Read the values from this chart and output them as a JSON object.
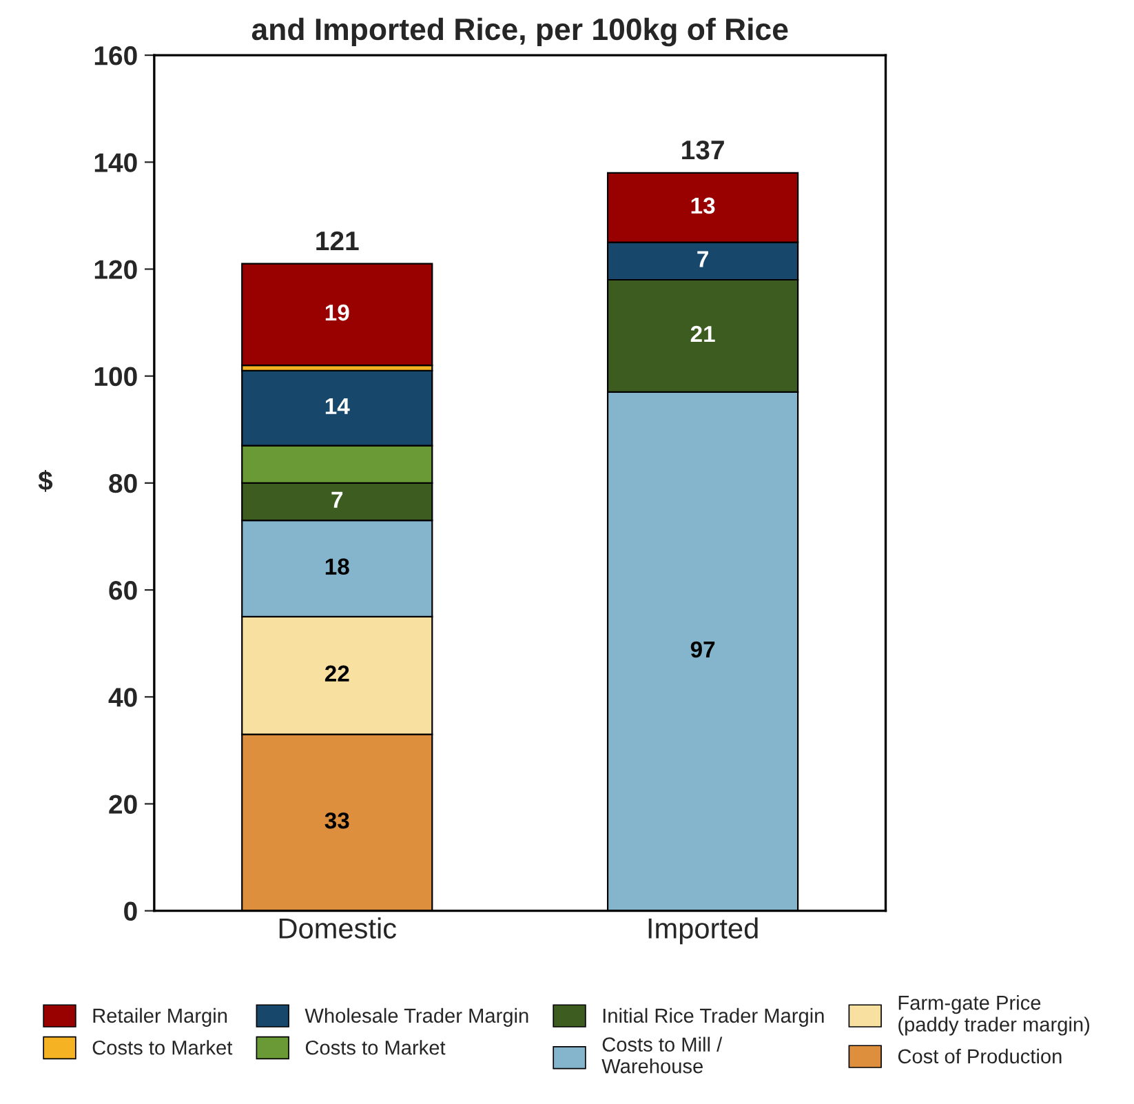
{
  "chart_data": {
    "type": "bar",
    "stacked": true,
    "title": "and Imported Rice, per 100kg of Rice",
    "ylabel": "$",
    "categories": [
      "Domestic",
      "Imported"
    ],
    "series": [
      {
        "name": "Cost of Production",
        "color": "#dd8f3d",
        "values": [
          33,
          null
        ],
        "value_labels": [
          "33",
          null
        ]
      },
      {
        "name": "Farm-gate Price\n(paddy trader margin)",
        "color": "#f8e0a0",
        "values": [
          22,
          null
        ],
        "value_labels": [
          "22",
          null
        ]
      },
      {
        "name": "Costs to Mill /\nWarehouse",
        "color": "#84b5cc",
        "values": [
          18,
          97
        ],
        "value_labels": [
          "18",
          "97"
        ]
      },
      {
        "name": "Initial Rice Trader Margin",
        "color": "#3d5c20",
        "values": [
          7,
          21
        ],
        "value_labels": [
          "7",
          "21"
        ]
      },
      {
        "name": "Costs to Market",
        "color": "#6a9a35",
        "values": [
          7,
          null
        ],
        "value_labels": [
          null,
          null
        ]
      },
      {
        "name": "Wholesale Trader Margin",
        "color": "#17486c",
        "values": [
          14,
          7
        ],
        "value_labels": [
          "14",
          "7"
        ]
      },
      {
        "name": "Costs to Market",
        "color": "#f5b323",
        "values": [
          1,
          null
        ],
        "value_labels": [
          null,
          null
        ]
      },
      {
        "name": "Retailer Margin",
        "color": "#990000",
        "values": [
          19,
          13
        ],
        "value_labels": [
          "19",
          "13"
        ]
      }
    ],
    "totals": [
      "121",
      "137"
    ],
    "ylim": [
      0,
      160
    ],
    "yticks": [
      0,
      20,
      40,
      60,
      80,
      100,
      120,
      140,
      160
    ],
    "grid": false,
    "legend": "bottom"
  }
}
